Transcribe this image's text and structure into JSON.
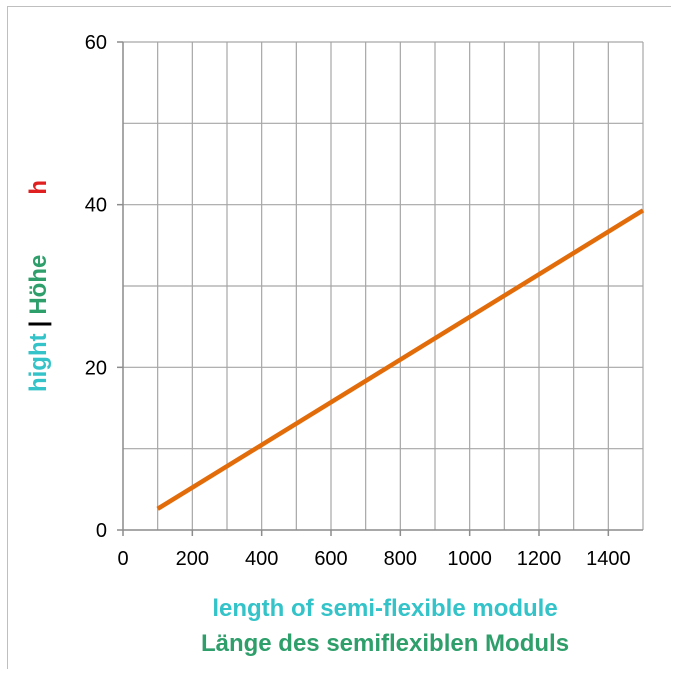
{
  "chart_data": {
    "type": "line",
    "title": "",
    "xlabel": {
      "line1": "length of semi-flexible module",
      "line2": "Länge des semiflexiblen Moduls"
    },
    "ylabel": {
      "part_en": "hight",
      "separator": "|",
      "part_de": "Höhe",
      "symbol": "h"
    },
    "xlim": [
      0,
      1500
    ],
    "ylim": [
      0,
      60
    ],
    "xticks": [
      0,
      200,
      400,
      600,
      800,
      1000,
      1200,
      1400
    ],
    "yticks": [
      0,
      20,
      40,
      60
    ],
    "grid": true,
    "series": [
      {
        "x": [
          100,
          1500
        ],
        "y": [
          2.6,
          39.3
        ]
      }
    ],
    "colors": {
      "series": "#e36c0a",
      "grid": "#a6a6a6",
      "label_en": "#33c3c8",
      "label_de": "#2e9e6b",
      "label_symbol": "#e02020",
      "separator": "#000000"
    }
  }
}
